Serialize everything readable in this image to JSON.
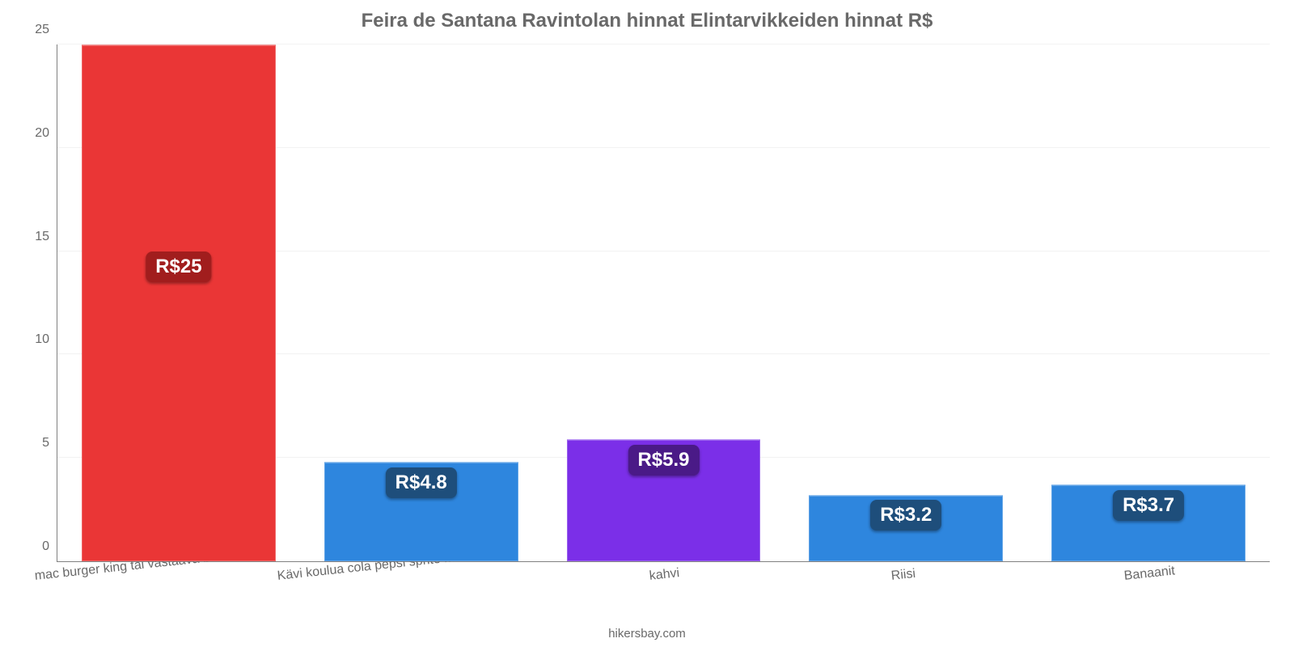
{
  "chart": {
    "type": "bar",
    "title": "Feira de Santana Ravintolan hinnat Elintarvikkeiden hinnat R$",
    "title_fontsize": 24,
    "title_color": "#696969",
    "attribution": "hikersbay.com",
    "attribution_color": "#696969",
    "background_color": "#ffffff",
    "axis_color": "#808080",
    "grid_color": "#d9d9d9",
    "tick_color": "#696969",
    "tick_fontsize": 16,
    "value_label_fontsize": 24,
    "ylim": [
      0,
      25
    ],
    "ytick_step": 5,
    "yticks": [
      0,
      5,
      10,
      15,
      20,
      25
    ],
    "bar_width_percent": 16,
    "categories": [
      "mac burger king tai vastaava baari",
      "Kävi koulua cola pepsi sprite mirinda",
      "kahvi",
      "Riisi",
      "Banaanit"
    ],
    "values": [
      25,
      4.8,
      5.9,
      3.2,
      3.7
    ],
    "value_labels": [
      "R$25",
      "R$4.8",
      "R$5.9",
      "R$3.2",
      "R$3.7"
    ],
    "bar_colors": [
      "#ea3636",
      "#2e86de",
      "#7b2fe8",
      "#2e86de",
      "#2e86de"
    ],
    "badge_colors": [
      "#a11d1d",
      "#1e4e7b",
      "#4a1a87",
      "#1e4e7b",
      "#1e4e7b"
    ]
  }
}
